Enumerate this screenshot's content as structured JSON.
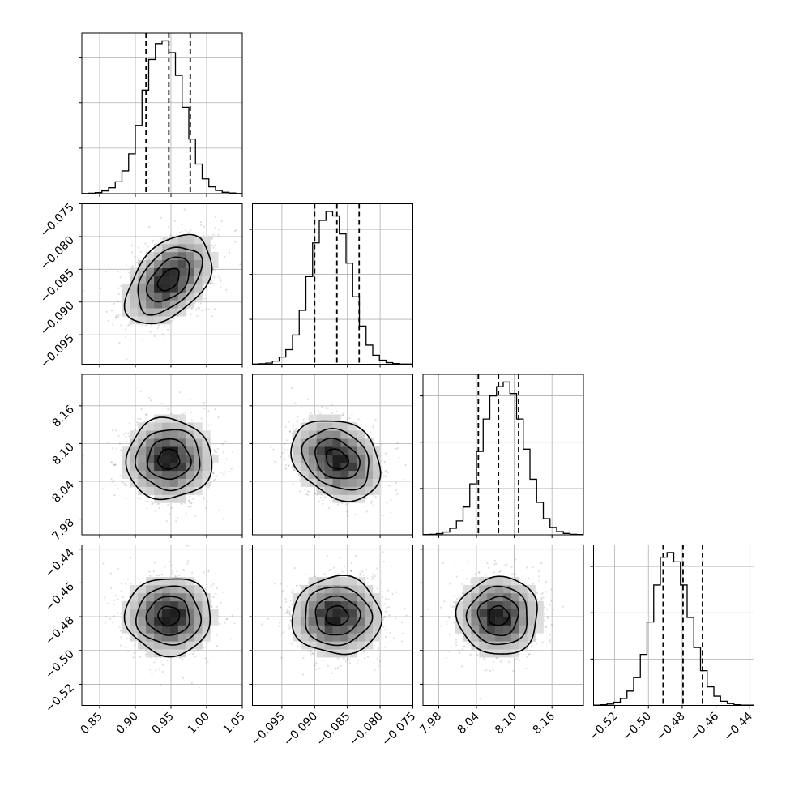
{
  "chart_data": {
    "type": "corner",
    "parameters": [
      {
        "mean": 0.947,
        "sd": 0.03,
        "range": [
          0.825,
          1.05
        ],
        "ticks": [
          0.85,
          0.9,
          0.95,
          1.0,
          1.05
        ],
        "tick_labels": [
          "0.85",
          "0.90",
          "0.95",
          "1.00",
          "1.05"
        ],
        "quantiles": [
          0.915,
          0.947,
          0.977
        ],
        "hist_counts": [
          1,
          2,
          5,
          12,
          26,
          52,
          100,
          175,
          300,
          455,
          590,
          660,
          672,
          620,
          520,
          380,
          240,
          130,
          65,
          30,
          14,
          6,
          3,
          1
        ]
      },
      {
        "mean": -0.0866,
        "sd": 0.0034,
        "range": [
          -0.0995,
          -0.075
        ],
        "ticks": [
          -0.095,
          -0.09,
          -0.085,
          -0.08,
          -0.075
        ],
        "tick_labels": [
          "−0.095",
          "−0.090",
          "−0.085",
          "−0.080",
          "−0.075"
        ],
        "quantiles": [
          -0.09,
          -0.0866,
          -0.0832
        ],
        "hist_counts": [
          1,
          2,
          5,
          14,
          32,
          65,
          130,
          240,
          390,
          540,
          640,
          680,
          660,
          580,
          450,
          300,
          170,
          85,
          40,
          18,
          7,
          3,
          1,
          1
        ]
      },
      {
        "mean": 8.075,
        "sd": 0.032,
        "range": [
          7.955,
          8.21
        ],
        "ticks": [
          7.98,
          8.04,
          8.1,
          8.16
        ],
        "tick_labels": [
          "7.98",
          "8.04",
          "8.10",
          "8.16"
        ],
        "quantiles": [
          8.043,
          8.075,
          8.107
        ],
        "hist_counts": [
          1,
          2,
          5,
          12,
          28,
          60,
          120,
          220,
          360,
          500,
          600,
          640,
          660,
          610,
          500,
          370,
          240,
          140,
          70,
          32,
          14,
          6,
          2,
          1
        ]
      },
      {
        "mean": -0.4795,
        "sd": 0.0115,
        "range": [
          -0.5325,
          -0.4375
        ],
        "ticks": [
          -0.52,
          -0.5,
          -0.48,
          -0.46,
          -0.44
        ],
        "tick_labels": [
          "−0.52",
          "−0.50",
          "−0.48",
          "−0.46",
          "−0.44"
        ],
        "quantiles": [
          -0.4913,
          -0.4795,
          -0.468
        ],
        "hist_counts": [
          1,
          3,
          6,
          14,
          30,
          62,
          120,
          220,
          360,
          520,
          640,
          660,
          620,
          520,
          380,
          250,
          150,
          80,
          40,
          18,
          8,
          3,
          1,
          1
        ]
      }
    ],
    "correlations": [
      [
        0,
        1,
        0.45
      ],
      [
        0,
        2,
        0.0
      ],
      [
        1,
        2,
        -0.25
      ],
      [
        0,
        3,
        0.0
      ],
      [
        1,
        3,
        0.0
      ],
      [
        2,
        3,
        0.0
      ]
    ],
    "contour_levels_sigma": [
      0.5,
      1.0,
      1.5,
      2.0
    ],
    "grid": true,
    "title": "",
    "legend": null
  }
}
